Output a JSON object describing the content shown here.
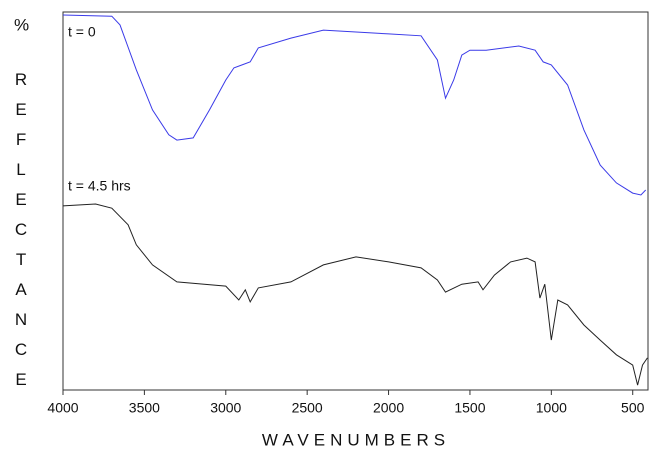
{
  "chart_data": {
    "type": "line",
    "xlabel": "WAVENUMBERS",
    "ylabel_unit": "%",
    "ylabel": "REFLECTANCE",
    "xlim": [
      4000,
      400
    ],
    "ylim": [
      0,
      100
    ],
    "xticks": [
      4000,
      3500,
      3000,
      2500,
      2000,
      1500,
      1000,
      500
    ],
    "annotations": [
      "t = 0",
      "t = 4.5 hrs"
    ],
    "series": [
      {
        "color": "#3a3ae8",
        "x": [
          4000,
          3700,
          3650,
          3550,
          3450,
          3350,
          3300,
          3200,
          3100,
          3000,
          2950,
          2900,
          2850,
          2800,
          2600,
          2400,
          2200,
          2000,
          1800,
          1700,
          1650,
          1600,
          1550,
          1500,
          1400,
          1200,
          1100,
          1050,
          1000,
          900,
          800,
          700,
          600,
          500,
          450,
          420
        ],
        "values": [
          99.2,
          98.9,
          96.6,
          84.7,
          74.1,
          67.5,
          66.1,
          66.7,
          74.1,
          82.0,
          85.2,
          86.0,
          86.8,
          90.5,
          93.1,
          95.2,
          94.7,
          94.2,
          93.7,
          87.3,
          77.2,
          82.0,
          88.6,
          89.9,
          89.9,
          91.0,
          89.9,
          86.8,
          86.0,
          80.7,
          68.8,
          59.5,
          54.8,
          52.1,
          51.6,
          52.9
        ]
      },
      {
        "color": "#222222",
        "x": [
          4000,
          3800,
          3700,
          3600,
          3550,
          3450,
          3300,
          3000,
          2920,
          2880,
          2850,
          2800,
          2600,
          2400,
          2200,
          2000,
          1800,
          1700,
          1650,
          1550,
          1450,
          1420,
          1350,
          1250,
          1150,
          1100,
          1070,
          1040,
          1000,
          960,
          900,
          800,
          700,
          600,
          500,
          470,
          440,
          410
        ],
        "values": [
          48.7,
          49.2,
          48.1,
          43.7,
          38.4,
          33.1,
          28.6,
          27.5,
          23.8,
          26.5,
          23.3,
          27.0,
          28.6,
          33.1,
          35.2,
          33.9,
          32.3,
          29.1,
          25.9,
          28.0,
          28.6,
          26.5,
          30.4,
          33.9,
          34.9,
          33.9,
          24.3,
          28.0,
          13.2,
          23.8,
          22.5,
          17.2,
          13.2,
          9.3,
          6.6,
          1.3,
          6.6,
          8.5
        ]
      }
    ]
  }
}
